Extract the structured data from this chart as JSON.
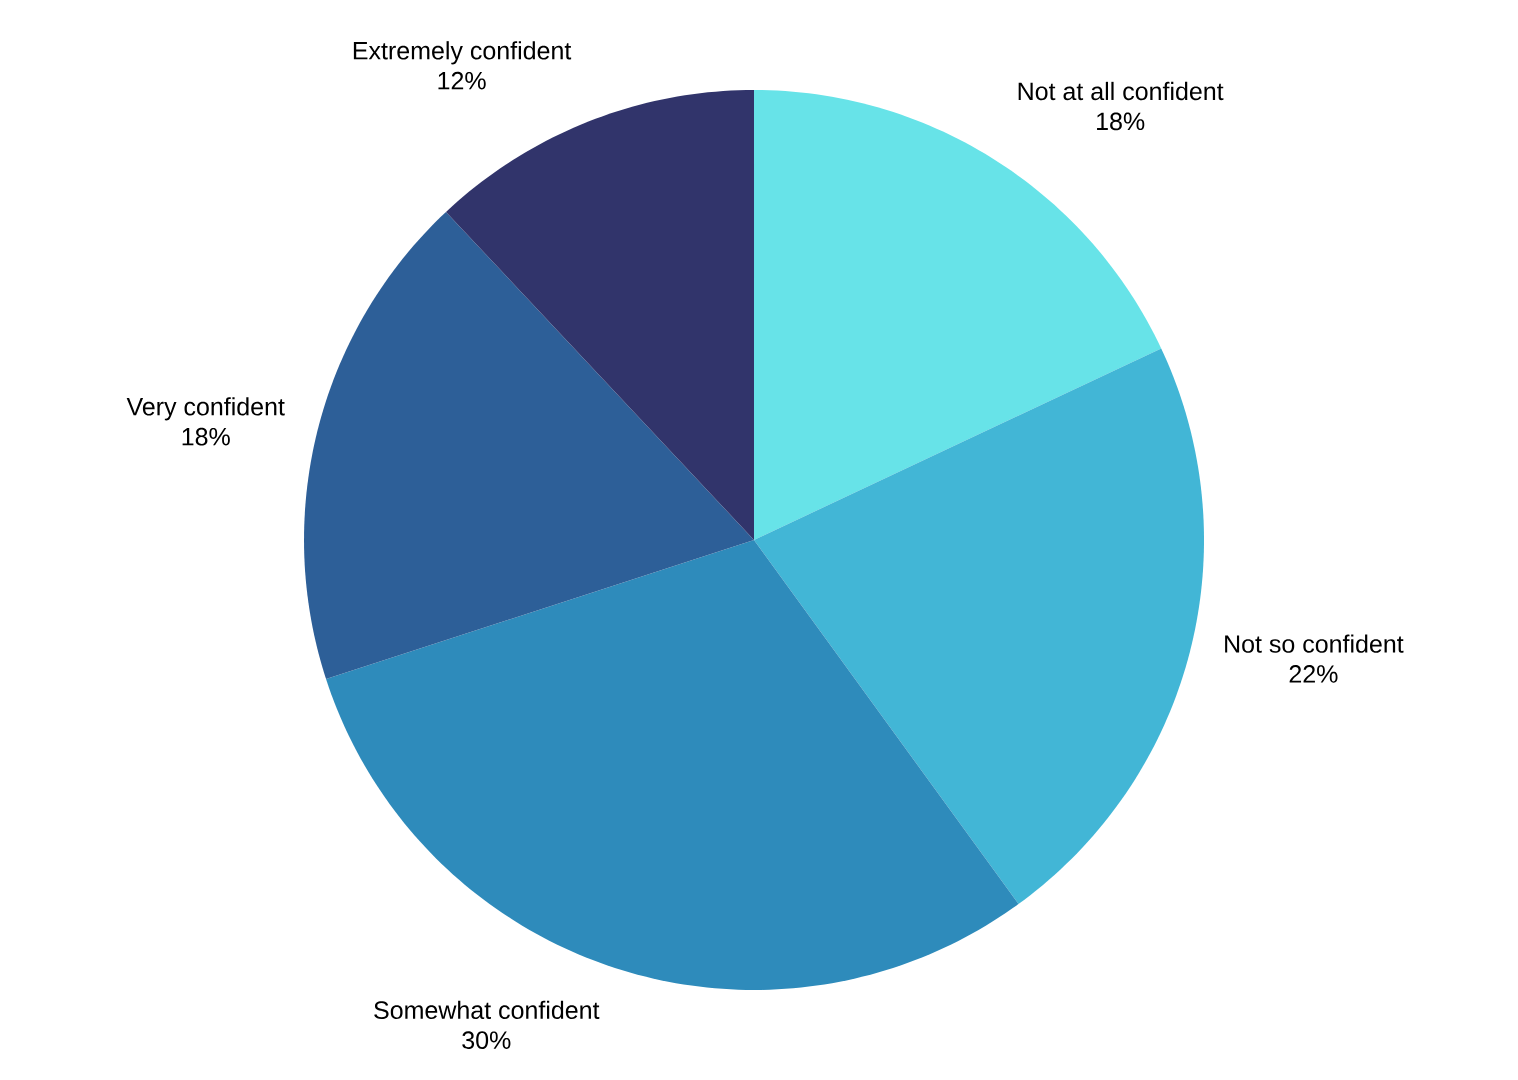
{
  "chart_data": {
    "type": "pie",
    "categories": [
      "Not at all confident",
      "Not so confident",
      "Somewhat confident",
      "Very confident",
      "Extremely confident"
    ],
    "values": [
      18,
      22,
      30,
      18,
      12
    ],
    "value_labels": [
      "18%",
      "22%",
      "30%",
      "18%",
      "12%"
    ],
    "colors": [
      "#67e3e8",
      "#42b6d6",
      "#2e8bbb",
      "#2d5f98",
      "#31346b"
    ]
  }
}
